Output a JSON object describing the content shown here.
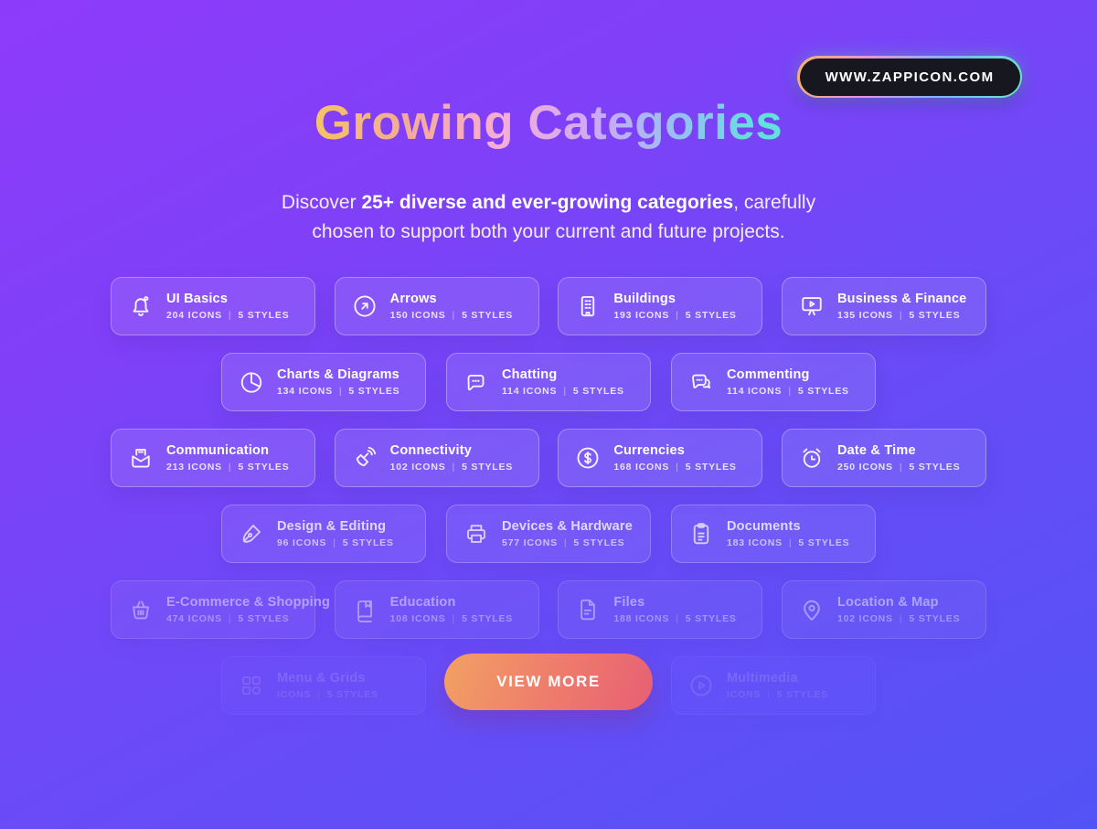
{
  "header": {
    "badge_label": "WWW.ZAPPICON.COM",
    "title": "Growing Categories",
    "subtitle": {
      "prefix": "Discover ",
      "highlight": "25+ diverse and ever-growing categories",
      "suffix_line1": ", carefully",
      "suffix_line2": "chosen to support both your current and future projects."
    }
  },
  "meta_divider": "|",
  "view_more": {
    "label": "VIEW MORE"
  },
  "colors": {
    "background_top": "#8D3BFA",
    "background_bottom": "#5253F6",
    "card_background": "rgba(255,255,255,0.10)",
    "card_border": "rgba(255,255,255,0.30)",
    "badge_background": "#17171F",
    "badge_ring": [
      "#F8B06A",
      "#E394E0",
      "#7EB5F6",
      "#63E7C8"
    ],
    "title_gradient": [
      "#F4C463",
      "#F3AB97",
      "#F6ADD8",
      "#CDA9F6",
      "#96C0F2",
      "#62E1DE"
    ],
    "view_more_gradient": [
      "#F2A164",
      "#E75F74"
    ],
    "text": "#FFFFFF"
  },
  "rows": [
    {
      "cards": [
        {
          "icon": "bell-icon",
          "label": "UI Basics",
          "count": "204 ICONS",
          "styles": "5 STYLES"
        },
        {
          "icon": "arrow-up-right-circle-icon",
          "label": "Arrows",
          "count": "150 ICONS",
          "styles": "5 STYLES"
        },
        {
          "icon": "building-icon",
          "label": "Buildings",
          "count": "193 ICONS",
          "styles": "5 STYLES"
        },
        {
          "icon": "presentation-chart-icon",
          "label": "Business & Finance",
          "count": "135 ICONS",
          "styles": "5 STYLES"
        }
      ]
    },
    {
      "cards": [
        {
          "icon": "pie-chart-icon",
          "label": "Charts & Diagrams",
          "count": "134 ICONS",
          "styles": "5 STYLES"
        },
        {
          "icon": "chat-bubble-icon",
          "label": "Chatting",
          "count": "114 ICONS",
          "styles": "5 STYLES"
        },
        {
          "icon": "comment-bubbles-icon",
          "label": "Commenting",
          "count": "114 ICONS",
          "styles": "5 STYLES"
        }
      ]
    },
    {
      "cards": [
        {
          "icon": "mail-inbox-icon",
          "label": "Communication",
          "count": "213 ICONS",
          "styles": "5 STYLES"
        },
        {
          "icon": "satellite-dish-icon",
          "label": "Connectivity",
          "count": "102 ICONS",
          "styles": "5 STYLES"
        },
        {
          "icon": "dollar-circle-icon",
          "label": "Currencies",
          "count": "168 ICONS",
          "styles": "5 STYLES"
        },
        {
          "icon": "alarm-clock-icon",
          "label": "Date & Time",
          "count": "250 ICONS",
          "styles": "5 STYLES"
        }
      ]
    },
    {
      "cards": [
        {
          "icon": "pen-nib-icon",
          "label": "Design & Editing",
          "count": "96 ICONS",
          "styles": "5 STYLES"
        },
        {
          "icon": "printer-icon",
          "label": "Devices & Hardware",
          "count": "577 ICONS",
          "styles": "5 STYLES"
        },
        {
          "icon": "clipboard-icon",
          "label": "Documents",
          "count": "183 ICONS",
          "styles": "5 STYLES"
        }
      ]
    },
    {
      "cards": [
        {
          "icon": "shopping-basket-icon",
          "label": "E-Commerce & Shopping",
          "count": "474 ICONS",
          "styles": "5 STYLES"
        },
        {
          "icon": "book-icon",
          "label": "Education",
          "count": "108 ICONS",
          "styles": "5 STYLES"
        },
        {
          "icon": "file-icon",
          "label": "Files",
          "count": "188 ICONS",
          "styles": "5 STYLES"
        },
        {
          "icon": "map-pin-icon",
          "label": "Location & Map",
          "count": "102 ICONS",
          "styles": "5 STYLES"
        }
      ]
    },
    {
      "cards": [
        {
          "icon": "grid-menu-icon",
          "label": "Menu & Grids",
          "count": "ICONS",
          "styles": "5 STYLES"
        },
        {
          "icon": "play-circle-icon",
          "label": "Multimedia",
          "count": "ICONS",
          "styles": "5 STYLES"
        }
      ]
    }
  ]
}
